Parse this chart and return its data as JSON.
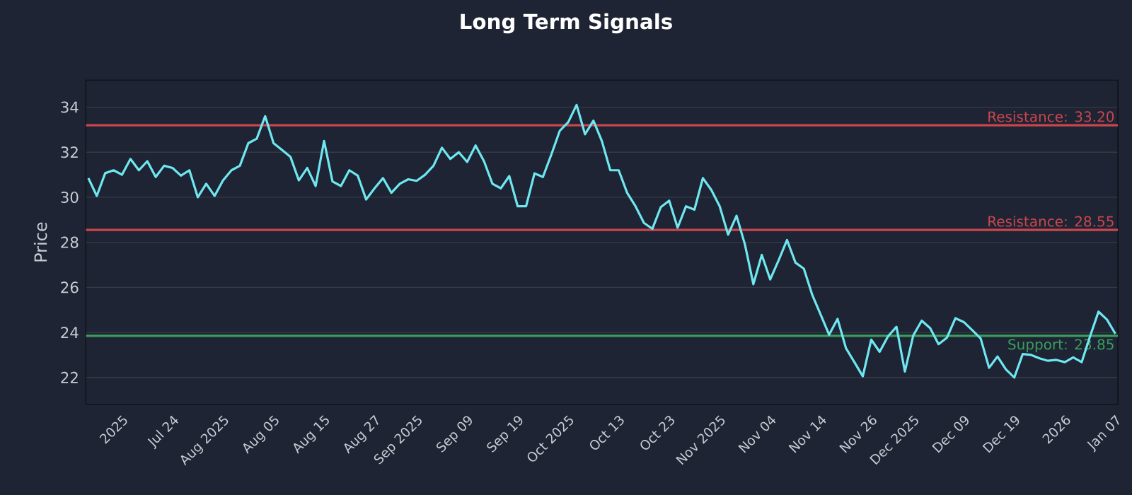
{
  "chart_data": {
    "type": "line",
    "title": "Long Term Signals",
    "ylabel": "Price",
    "categories": [
      null,
      null,
      null,
      null,
      "2025",
      null,
      null,
      null,
      null,
      null,
      "Jul 24",
      null,
      null,
      null,
      null,
      null,
      "Aug 2025",
      null,
      null,
      null,
      null,
      null,
      "Aug 05",
      null,
      null,
      null,
      null,
      null,
      "Aug 15",
      null,
      null,
      null,
      null,
      null,
      "Aug 27",
      null,
      null,
      null,
      null,
      "Sep 2025",
      null,
      null,
      null,
      null,
      null,
      "Sep 09",
      null,
      null,
      null,
      null,
      null,
      "Sep 19",
      null,
      null,
      null,
      null,
      null,
      "Oct 2025",
      null,
      null,
      null,
      null,
      null,
      "Oct 13",
      null,
      null,
      null,
      null,
      null,
      "Oct 23",
      null,
      null,
      null,
      null,
      null,
      "Nov 2025",
      null,
      null,
      null,
      null,
      null,
      "Nov 04",
      null,
      null,
      null,
      null,
      null,
      "Nov 14",
      null,
      null,
      null,
      null,
      null,
      "Nov 26",
      null,
      null,
      null,
      null,
      "Dec 2025",
      null,
      null,
      null,
      null,
      null,
      "Dec 09",
      null,
      null,
      null,
      null,
      null,
      "Dec 19",
      null,
      null,
      null,
      null,
      null,
      "2026",
      null,
      null,
      null,
      null,
      null,
      "Jan 07"
    ],
    "series": [
      {
        "color": "#6ee7f0",
        "values": [
          30.85,
          30.06,
          31.07,
          31.2,
          31.0,
          31.7,
          31.2,
          31.6,
          30.9,
          31.4,
          31.3,
          30.96,
          31.2,
          30.0,
          30.6,
          30.06,
          30.75,
          31.2,
          31.4,
          32.4,
          32.6,
          33.6,
          32.4,
          32.1,
          31.8,
          30.75,
          31.3,
          30.5,
          32.5,
          30.7,
          30.5,
          31.2,
          30.96,
          29.9,
          30.4,
          30.85,
          30.2,
          30.6,
          30.8,
          30.73,
          31.0,
          31.4,
          32.2,
          31.7,
          32.0,
          31.57,
          32.3,
          31.6,
          30.6,
          30.4,
          30.94,
          29.6,
          29.6,
          31.06,
          30.9,
          31.9,
          32.95,
          33.33,
          34.1,
          32.8,
          33.4,
          32.5,
          31.2,
          31.2,
          30.2,
          29.6,
          28.86,
          28.6,
          29.56,
          29.85,
          28.65,
          29.6,
          29.45,
          30.85,
          30.33,
          29.6,
          28.34,
          29.18,
          27.9,
          26.14,
          27.44,
          26.35,
          27.2,
          28.1,
          27.1,
          26.83,
          25.66,
          24.78,
          23.9,
          24.6,
          23.3,
          22.68,
          22.05,
          23.68,
          23.14,
          23.83,
          24.25,
          22.26,
          23.87,
          24.52,
          24.19,
          23.48,
          23.77,
          24.63,
          24.46,
          24.1,
          23.73,
          22.43,
          22.93,
          22.36,
          22.0,
          23.04,
          23.0,
          22.85,
          22.74,
          22.78,
          22.68,
          22.89,
          22.68,
          23.83,
          24.92,
          24.57,
          23.94
        ]
      }
    ],
    "ylim": [
      20.8,
      35.2
    ],
    "yticks": [
      22,
      24,
      26,
      28,
      30,
      32,
      34
    ],
    "grid": "y",
    "ref_lines": [
      {
        "axis": "y",
        "value": 33.2,
        "label": "Resistance: 33.20",
        "color": "#c9464f"
      },
      {
        "axis": "y",
        "value": 28.55,
        "label": "Resistance: 28.55",
        "color": "#c9464f"
      },
      {
        "axis": "y",
        "value": 23.85,
        "label": "Support: 23.85",
        "color": "#3a9d5d"
      }
    ]
  }
}
